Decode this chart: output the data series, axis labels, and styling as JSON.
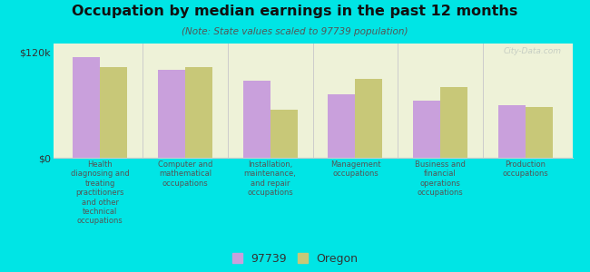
{
  "title": "Occupation by median earnings in the past 12 months",
  "subtitle": "(Note: State values scaled to 97739 population)",
  "background_color": "#00e5e5",
  "plot_bg_color": "#eef2d8",
  "categories": [
    "Health\ndiagnosing and\ntreating\npractitioners\nand other\ntechnical\noccupations",
    "Computer and\nmathematical\noccupations",
    "Installation,\nmaintenance,\nand repair\noccupations",
    "Management\noccupations",
    "Business and\nfinancial\noperations\noccupations",
    "Production\noccupations"
  ],
  "values_97739": [
    115000,
    100000,
    88000,
    72000,
    65000,
    60000
  ],
  "values_oregon": [
    103000,
    103000,
    55000,
    90000,
    80000,
    58000
  ],
  "color_97739": "#c9a0dc",
  "color_oregon": "#c8c878",
  "ylim": [
    0,
    130000
  ],
  "yticks": [
    0,
    120000
  ],
  "ytick_labels": [
    "$0",
    "$120k"
  ],
  "legend_labels": [
    "97739",
    "Oregon"
  ],
  "bar_width": 0.32,
  "watermark": "City-Data.com",
  "sep_color": "#cccccc",
  "spine_color": "#cccccc"
}
